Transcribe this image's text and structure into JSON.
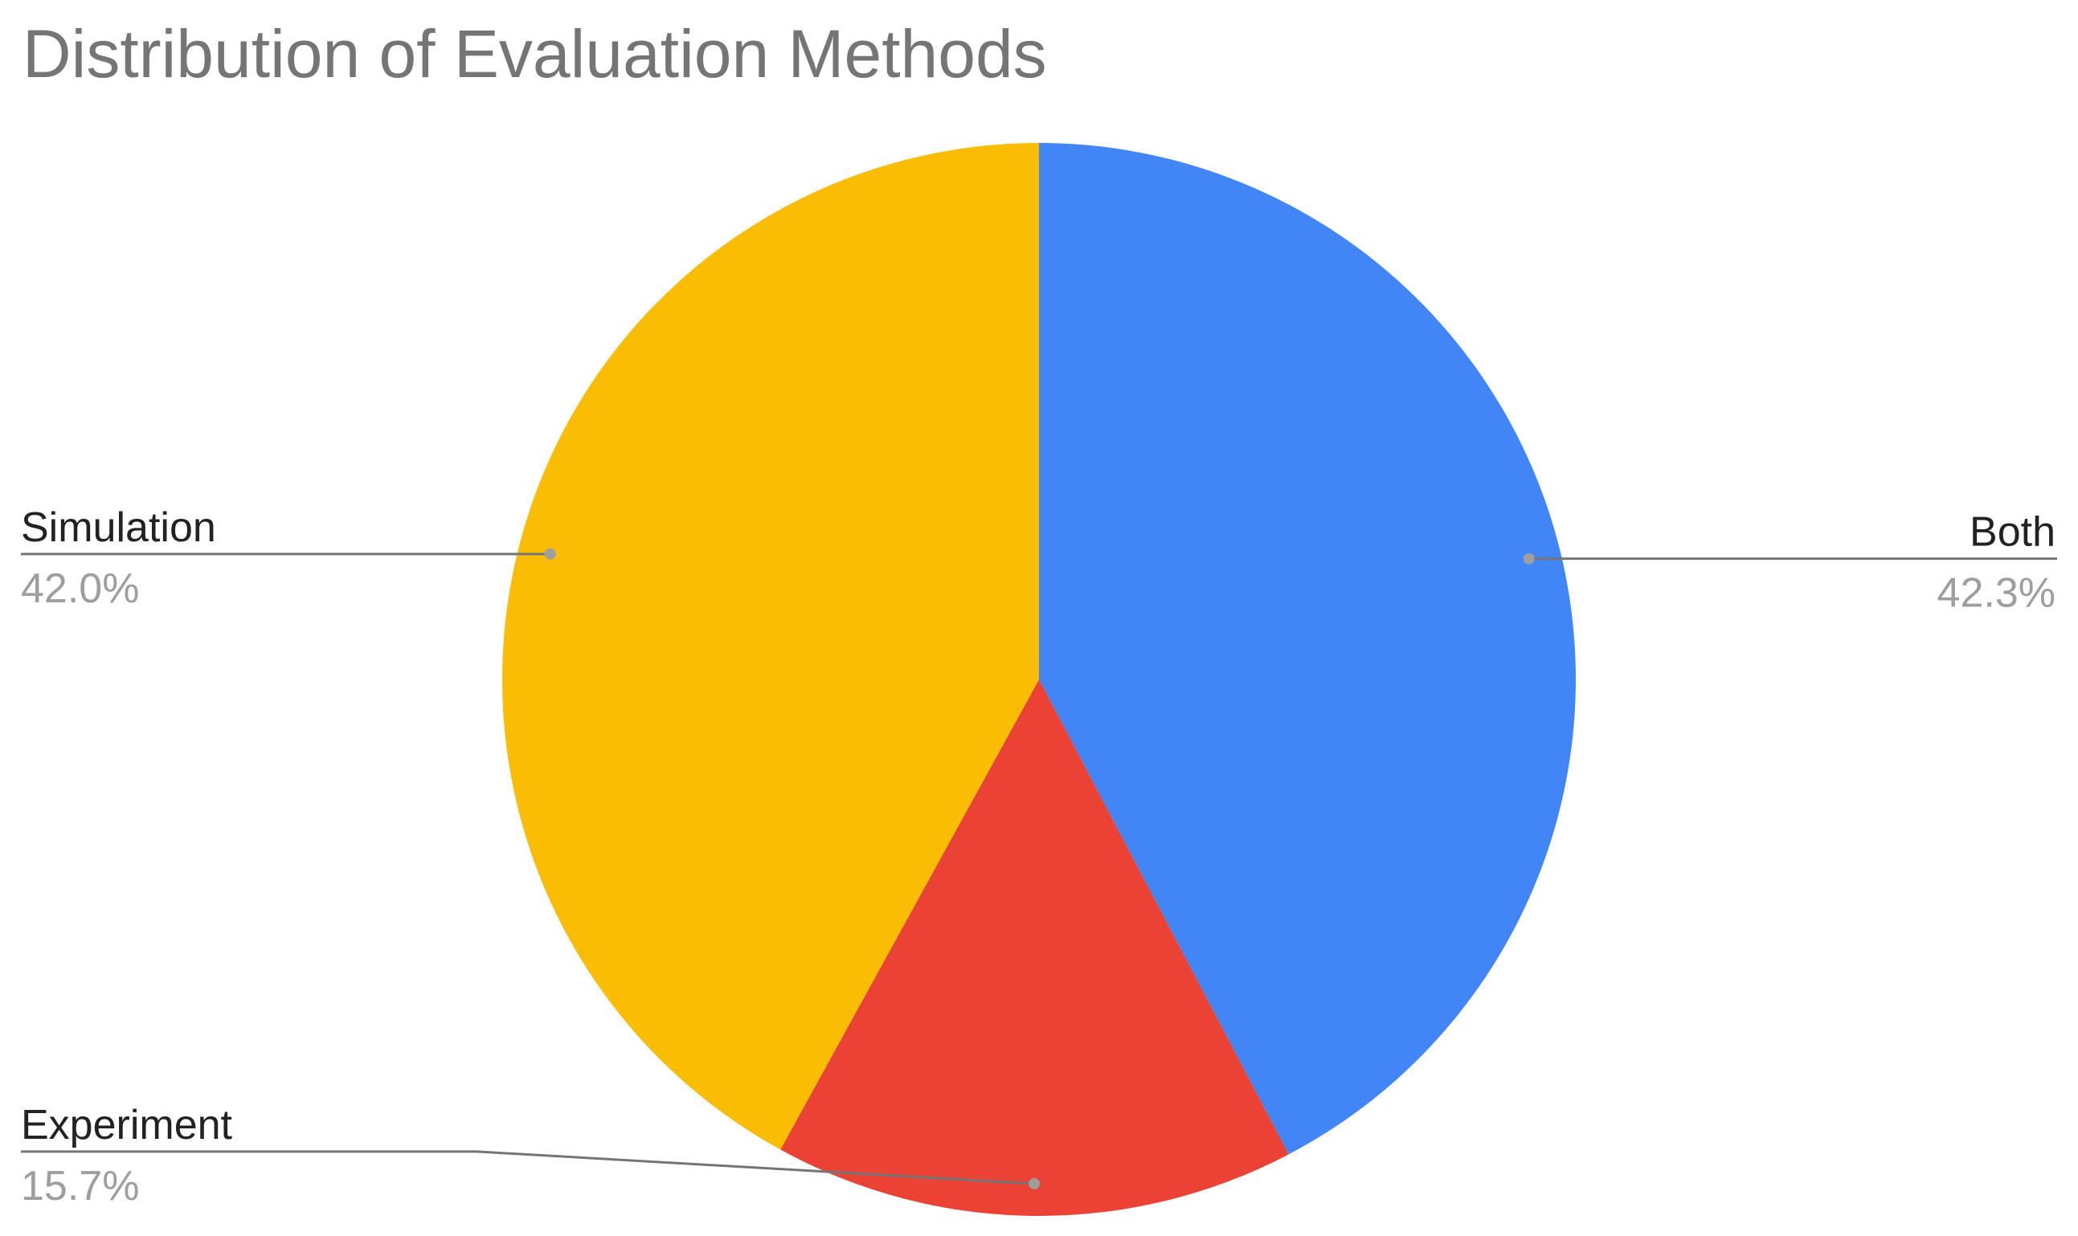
{
  "chart_data": {
    "type": "pie",
    "title": "Distribution of Evaluation Methods",
    "categories": [
      "Both",
      "Experiment",
      "Simulation"
    ],
    "values": [
      42.3,
      15.7,
      42.0
    ],
    "value_labels": [
      "42.3%",
      "15.7%",
      "42.0%"
    ],
    "colors": [
      "#4285f4",
      "#ea4335",
      "#fbbc04"
    ]
  }
}
